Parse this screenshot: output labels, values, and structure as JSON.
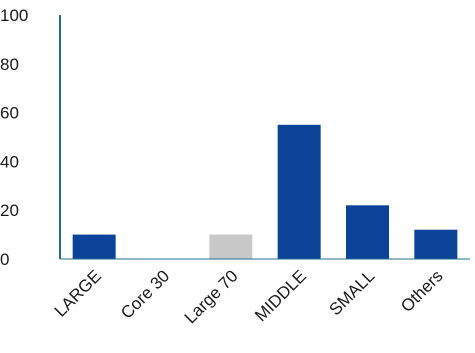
{
  "chart_data": {
    "type": "bar",
    "categories": [
      "LARGE",
      "Core 30",
      "Large 70",
      "MIDDLE",
      "SMALL",
      "Others"
    ],
    "values": [
      10,
      0,
      10,
      55,
      22,
      12
    ],
    "bar_colors": [
      "#0b4399",
      "#0b4399",
      "#c8c8c8",
      "#0b4399",
      "#0b4399",
      "#0b4399"
    ],
    "title": "",
    "xlabel": "",
    "ylabel": "",
    "ylim": [
      0,
      100
    ],
    "yticks": [
      "0",
      "20",
      "40",
      "60",
      "80",
      "100"
    ],
    "grid": false,
    "axis_color": "#1f6f8b"
  }
}
